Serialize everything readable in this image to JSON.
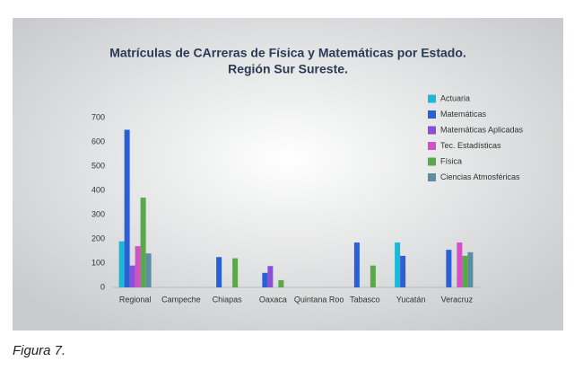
{
  "chart_data": {
    "type": "bar",
    "title": "Matrículas de CArreras de Física y Matemáticas por Estado.",
    "subtitle": "Región Sur Sureste.",
    "categories": [
      "Regional",
      "Campeche",
      "Chiapas",
      "Oaxaca",
      "Quintana Roo",
      "Tabasco",
      "Yucatán",
      "Veracruz"
    ],
    "series": [
      {
        "name": "Actuaria",
        "color": "#1bb8d8",
        "values": [
          190,
          0,
          0,
          0,
          0,
          0,
          185,
          0
        ]
      },
      {
        "name": "Matemáticas",
        "color": "#2a5fd8",
        "values": [
          650,
          0,
          125,
          60,
          0,
          185,
          130,
          155
        ]
      },
      {
        "name": "Matemáticas Aplicadas",
        "color": "#8a4fd6",
        "values": [
          90,
          0,
          0,
          88,
          0,
          0,
          0,
          0
        ]
      },
      {
        "name": "Tec. Estadísticas",
        "color": "#d44fc8",
        "values": [
          170,
          0,
          0,
          0,
          0,
          0,
          0,
          185
        ]
      },
      {
        "name": "Física",
        "color": "#5aa84a",
        "values": [
          370,
          0,
          120,
          30,
          0,
          90,
          0,
          130
        ]
      },
      {
        "name": "Ciencias Atmosféricas",
        "color": "#5a8ea0",
        "values": [
          140,
          0,
          0,
          0,
          0,
          0,
          0,
          145
        ]
      }
    ],
    "ylim": [
      0,
      700
    ],
    "yticks": [
      0,
      100,
      200,
      300,
      400,
      500,
      600,
      700
    ],
    "grid": false,
    "legend": "top-right"
  },
  "caption": "Figura 7."
}
